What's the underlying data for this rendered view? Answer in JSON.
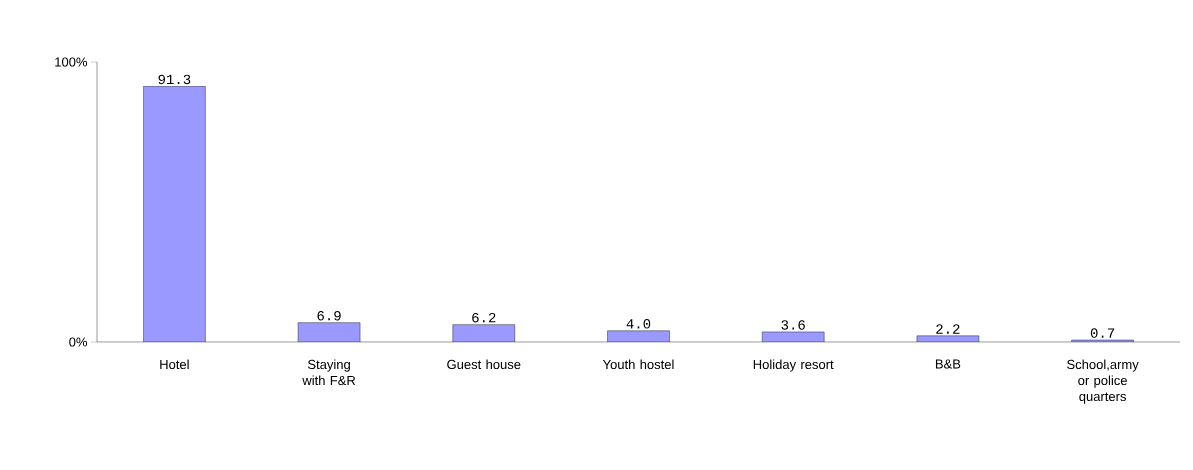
{
  "chart_data": {
    "type": "bar",
    "categories": [
      "Hotel",
      "Staying with F&R",
      "Guest house",
      "Youth hostel",
      "Holiday resort",
      "B&B",
      "School,army or police quarters"
    ],
    "values": [
      91.3,
      6.9,
      6.2,
      4.0,
      3.6,
      2.2,
      0.7
    ],
    "color": "#9999ff",
    "ylim": [
      0,
      100
    ],
    "yticks": [
      {
        "value": 0,
        "label": "0%"
      },
      {
        "value": 100,
        "label": "100%"
      }
    ],
    "value_labels": [
      "91.3",
      "6.9",
      "6.2",
      "4.0",
      "3.6",
      "2.2",
      "0.7"
    ]
  }
}
